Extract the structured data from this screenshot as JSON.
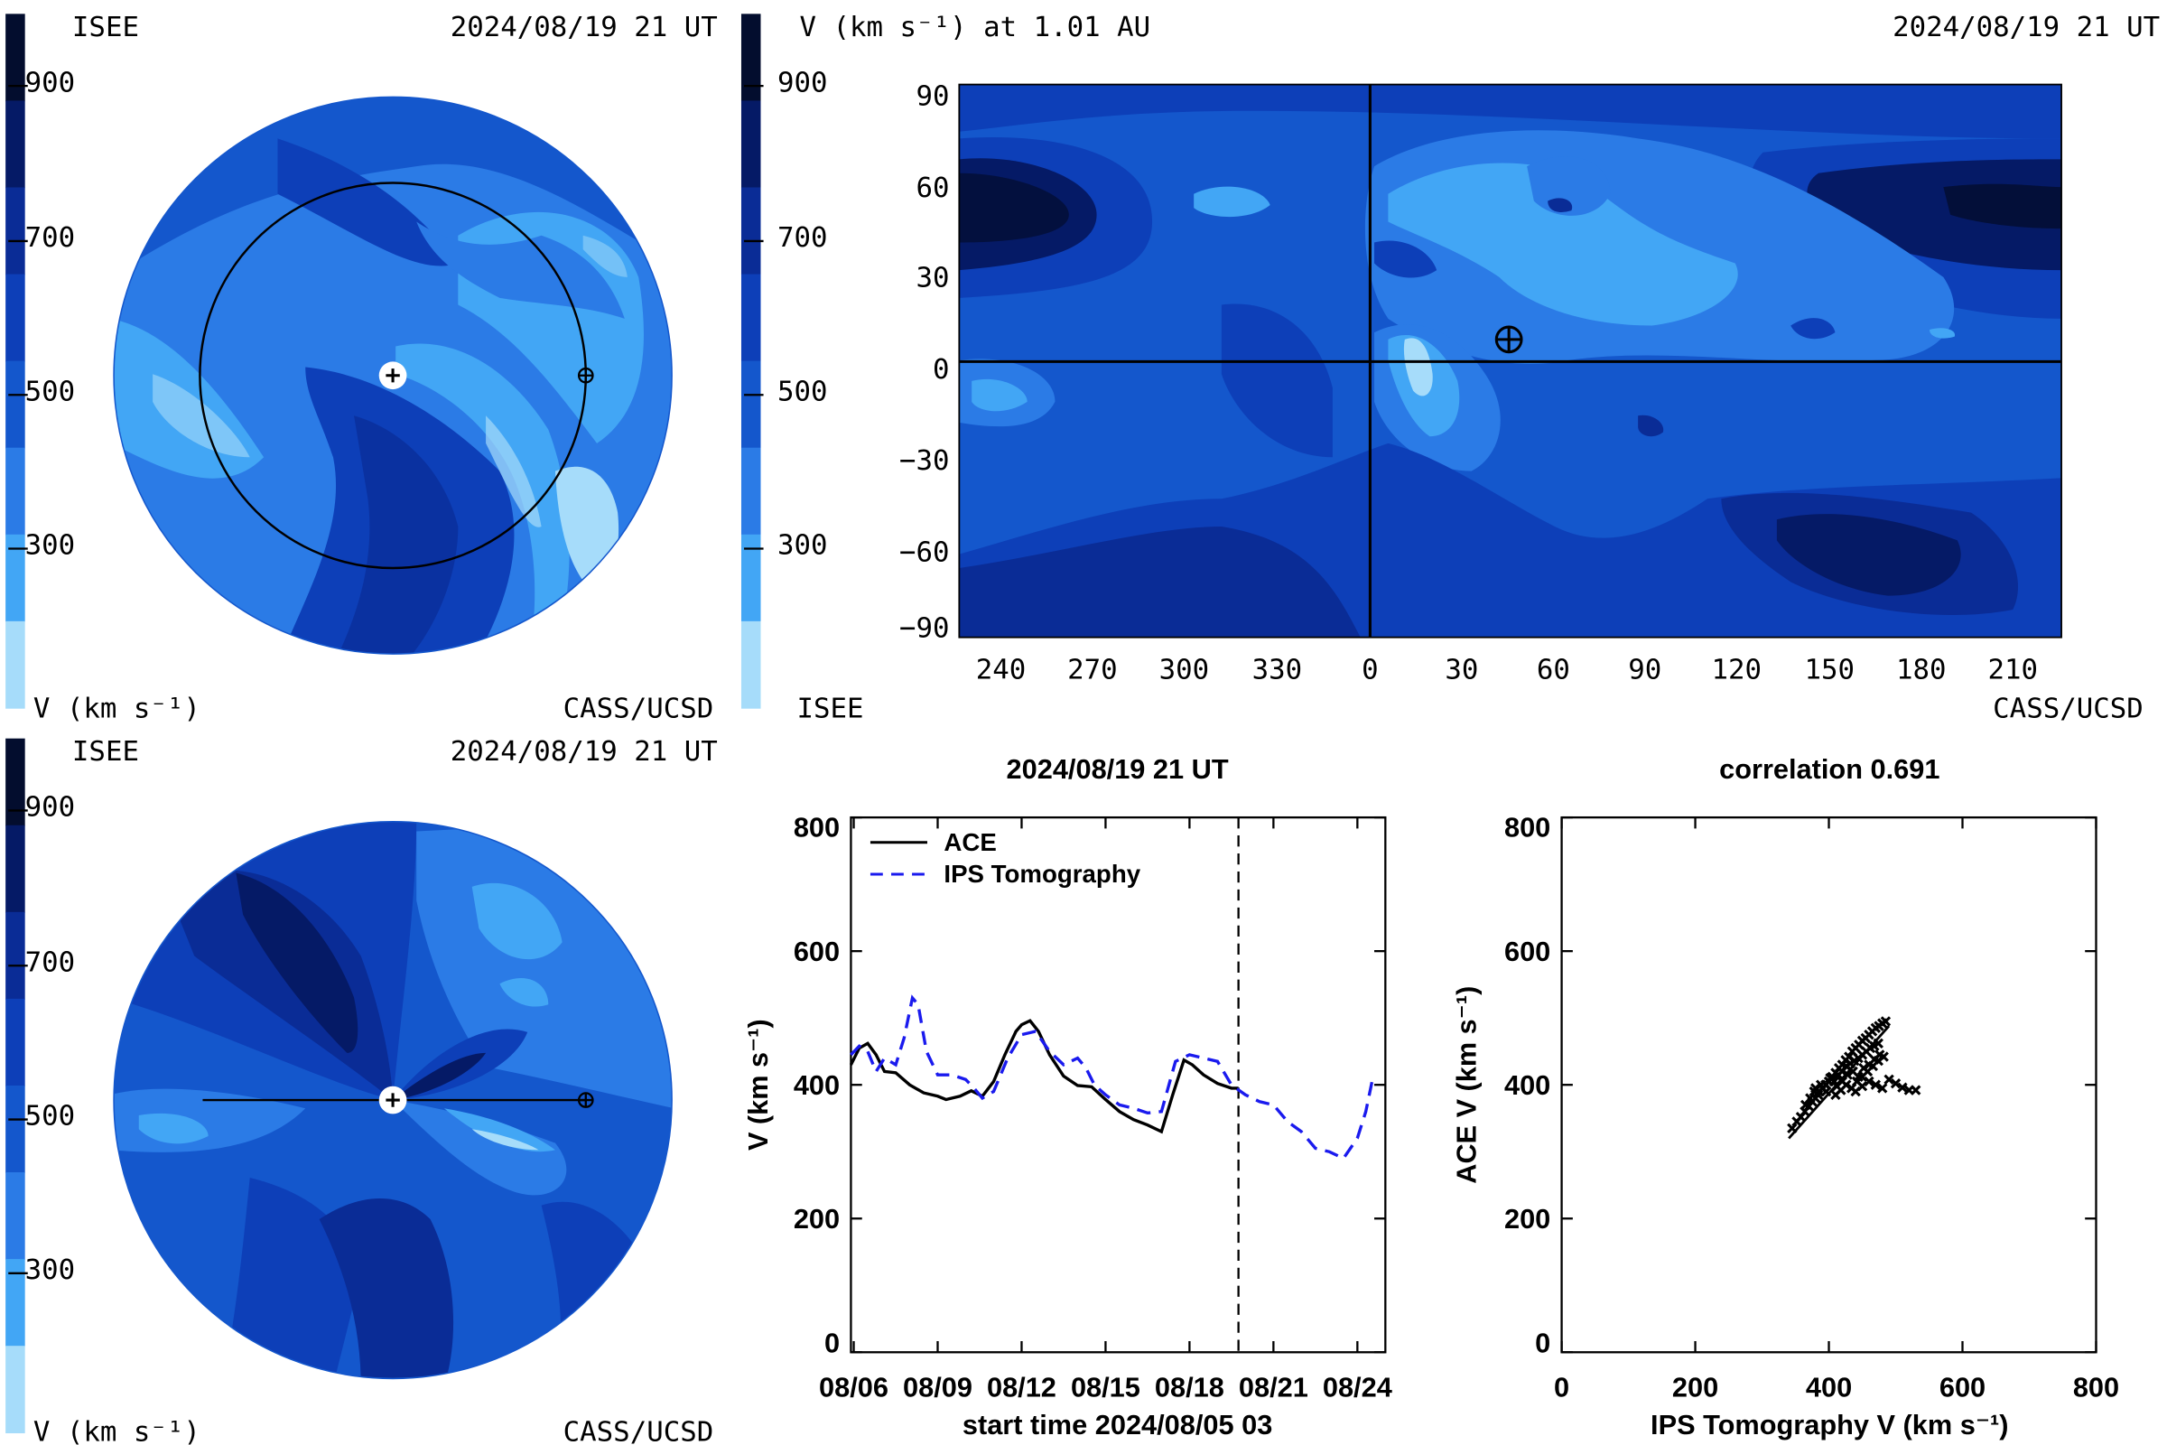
{
  "top_left_panel": {
    "org_left": "ISEE",
    "timestamp": "2024/08/19 21 UT",
    "org_right": "CASS/UCSD",
    "colorbar_label": "V (km s⁻¹)",
    "colorbar_ticks": [
      "900",
      "700",
      "500",
      "300"
    ]
  },
  "bottom_left_panel": {
    "org_left": "ISEE",
    "timestamp": "2024/08/19 21 UT",
    "org_right": "CASS/UCSD",
    "colorbar_label": "V (km s⁻¹)",
    "colorbar_ticks": [
      "900",
      "700",
      "500",
      "300"
    ]
  },
  "synoptic_panel": {
    "title": "V (km s⁻¹) at 1.01 AU",
    "timestamp": "2024/08/19 21 UT",
    "org_left": "ISEE",
    "org_right": "CASS/UCSD",
    "colorbar_ticks": [
      "900",
      "700",
      "500",
      "300"
    ],
    "y_ticks": [
      "90",
      "60",
      "30",
      "0",
      "−30",
      "−60",
      "−90"
    ],
    "x_ticks": [
      "240",
      "270",
      "300",
      "330",
      "0",
      "30",
      "60",
      "90",
      "120",
      "150",
      "180",
      "210"
    ]
  },
  "colors": {
    "v900": "#030d2e",
    "v800": "#051a66",
    "v700": "#0a2c96",
    "v600": "#0d3fb8",
    "v500": "#1457cc",
    "v400": "#2b7be6",
    "v300": "#42a6f5",
    "v200": "#a6dcfa",
    "ace": "#000000",
    "ips": "#1a1aee"
  },
  "chart_data": [
    {
      "type": "line",
      "title": "2024/08/19 21 UT",
      "xlabel": "start time 2024/08/05 03",
      "ylabel": "V (km s⁻¹)",
      "ylim": [
        0,
        800
      ],
      "xlim": [
        0.9,
        20.0
      ],
      "y_ticks": [
        "0",
        "200",
        "400",
        "600",
        "800"
      ],
      "x_ticks": [
        {
          "x": 1,
          "label": "08/06"
        },
        {
          "x": 4,
          "label": "08/09"
        },
        {
          "x": 7,
          "label": "08/12"
        },
        {
          "x": 10,
          "label": "08/15"
        },
        {
          "x": 13,
          "label": "08/18"
        },
        {
          "x": 16,
          "label": "08/21"
        },
        {
          "x": 19,
          "label": "08/24"
        }
      ],
      "now_marker_x": 14.75,
      "legend_position": "top-left",
      "series": [
        {
          "name": "ACE",
          "style": "solid",
          "x": [
            0.9,
            1.2,
            1.5,
            1.8,
            2.1,
            2.5,
            3.0,
            3.5,
            4.0,
            4.3,
            4.8,
            5.2,
            5.6,
            6.0,
            6.4,
            6.8,
            7.0,
            7.3,
            7.6,
            8.0,
            8.5,
            9.0,
            9.5,
            10.0,
            10.5,
            11.0,
            11.5,
            12.0,
            12.4,
            12.8,
            13.1,
            13.5,
            14.0,
            14.5,
            14.75
          ],
          "y": [
            430,
            455,
            462,
            445,
            420,
            418,
            400,
            388,
            383,
            378,
            383,
            391,
            383,
            405,
            445,
            480,
            490,
            496,
            480,
            445,
            413,
            399,
            397,
            378,
            360,
            348,
            340,
            330,
            385,
            437,
            430,
            415,
            402,
            395,
            395
          ]
        },
        {
          "name": "IPS Tomography",
          "style": "dashed",
          "x": [
            0.9,
            1.2,
            1.5,
            1.8,
            2.1,
            2.5,
            2.8,
            3.1,
            3.3,
            3.6,
            4.0,
            4.5,
            5.0,
            5.3,
            5.6,
            6.0,
            6.5,
            7.0,
            7.5,
            8.0,
            8.5,
            9.0,
            9.3,
            9.6,
            10.0,
            10.5,
            11.0,
            11.5,
            12.0,
            12.5,
            13.0,
            13.5,
            14.0,
            14.5,
            15.0,
            15.5,
            16.0,
            16.5,
            17.0,
            17.5,
            18.0,
            18.5,
            19.0,
            19.3,
            19.55
          ],
          "y": [
            445,
            458,
            450,
            420,
            440,
            430,
            470,
            530,
            520,
            450,
            415,
            415,
            408,
            395,
            380,
            390,
            440,
            475,
            480,
            450,
            430,
            440,
            425,
            400,
            385,
            370,
            365,
            358,
            360,
            435,
            445,
            440,
            435,
            400,
            385,
            375,
            370,
            345,
            330,
            305,
            300,
            290,
            320,
            360,
            410
          ]
        }
      ]
    },
    {
      "type": "scatter",
      "title": "correlation 0.691",
      "xlabel": "IPS Tomography V (km s⁻¹)",
      "ylabel": "ACE V (km s⁻¹)",
      "xlim": [
        0,
        800
      ],
      "ylim": [
        0,
        800
      ],
      "x_ticks": [
        "0",
        "200",
        "400",
        "600",
        "800"
      ],
      "y_ticks": [
        "0",
        "200",
        "400",
        "600",
        "800"
      ],
      "fit_line": {
        "x": [
          340,
          490
        ],
        "y": [
          320,
          488
        ]
      },
      "points": {
        "x": [
          345,
          352,
          358,
          364,
          370,
          375,
          380,
          385,
          390,
          395,
          400,
          405,
          410,
          415,
          420,
          425,
          430,
          435,
          440,
          445,
          450,
          455,
          460,
          465,
          470,
          475,
          480,
          485,
          365,
          372,
          378,
          384,
          390,
          396,
          402,
          408,
          414,
          420,
          426,
          432,
          438,
          444,
          450,
          456,
          462,
          468,
          474,
          380,
          388,
          396,
          404,
          412,
          420,
          428,
          436,
          444,
          452,
          460,
          468,
          476,
          410,
          418,
          426,
          434,
          442,
          450,
          458,
          466,
          474,
          482,
          440,
          450,
          460,
          470,
          480,
          490,
          500,
          510,
          520,
          530
        ],
        "y": [
          335,
          345,
          352,
          360,
          368,
          375,
          380,
          390,
          395,
          400,
          405,
          412,
          418,
          425,
          430,
          437,
          442,
          450,
          455,
          460,
          466,
          470,
          475,
          480,
          485,
          488,
          492,
          495,
          370,
          380,
          390,
          385,
          395,
          400,
          410,
          405,
          415,
          420,
          428,
          432,
          436,
          440,
          445,
          450,
          455,
          458,
          462,
          395,
          400,
          390,
          410,
          398,
          405,
          415,
          420,
          412,
          425,
          430,
          438,
          445,
          385,
          392,
          400,
          395,
          405,
          412,
          420,
          428,
          436,
          442,
          390,
          398,
          405,
          400,
          395,
          408,
          402,
          396,
          392,
          392
        ]
      }
    }
  ]
}
